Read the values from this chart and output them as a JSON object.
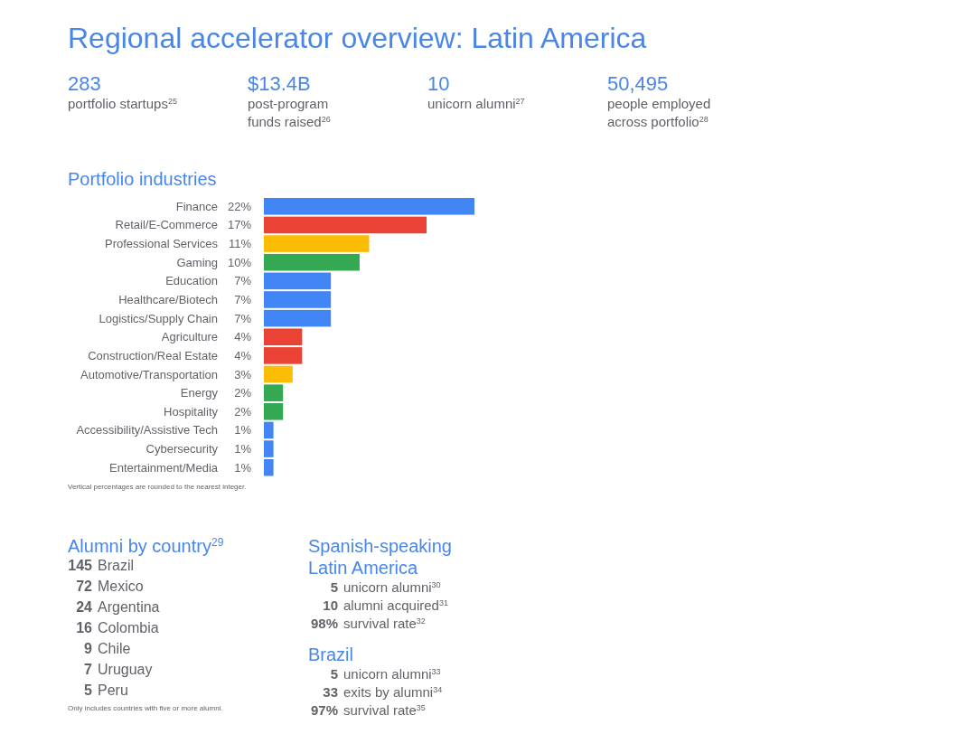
{
  "chart_data": [
    {
      "type": "other",
      "title": "Regional accelerator overview: Latin America",
      "annotations": [
        "283",
        "portfolio startups$^{25}$",
        "$13.4B",
        "post-program\nfunds raised$^{26}$",
        "10",
        "unicorn alumni$^{27}$",
        "50,495",
        "people employed\nacross portfolio$^{28}$"
      ]
    },
    {
      "type": "bar",
      "orientation": "horizontal",
      "title": "Portfolio industries",
      "categories": [
        "Finance",
        "Retail/E-Commerce",
        "Professional Services",
        "Gaming",
        "Education",
        "Healthcare/Biotech",
        "Logistics/Supply Chain",
        "Agriculture",
        "Construction/Real Estate",
        "Automotive/Transportation",
        "Energy",
        "Hospitality",
        "Accessibility/Assistive Tech",
        "Cybersecurity",
        "Entertainment/Media"
      ],
      "values": [
        22,
        17,
        11,
        10,
        7,
        7,
        7,
        4,
        4,
        3,
        2,
        2,
        1,
        1,
        1
      ],
      "value_labels": [
        "22%",
        "17%",
        "11%",
        "10%",
        "7%",
        "7%",
        "7%",
        "4%",
        "4%",
        "3%",
        "2%",
        "2%",
        "1%",
        "1%",
        "1%"
      ],
      "colors": [
        "#4285f4",
        "#ea4335",
        "#fbbc04",
        "#34a853",
        "#4285f4",
        "#4285f4",
        "#4285f4",
        "#ea4335",
        "#ea4335",
        "#fbbc04",
        "#34a853",
        "#34a853",
        "#4285f4",
        "#4285f4",
        "#4285f4"
      ],
      "annotations": [
        "Vertical percentages are rounded to the nearest integer."
      ]
    },
    {
      "type": "other",
      "title": "Alumni by country$^{29}$",
      "categories": [
        "Brazil",
        "Mexico",
        "Argentina",
        "Colombia",
        "Chile",
        "Uruguay",
        "Peru"
      ],
      "values": [
        145,
        72,
        24,
        16,
        9,
        7,
        5
      ],
      "data_labels": true,
      "annotations": [
        "Only includes countries with five or more alumni."
      ]
    },
    {
      "type": "other",
      "title": "Spanish-speaking\nLatin America",
      "categories": [
        "unicorn alumni$^{30}$",
        "alumni acquired$^{31}$",
        "survival rate$^{32}$"
      ],
      "value_labels": [
        "5",
        "10",
        "98%"
      ]
    },
    {
      "type": "other",
      "title": "Brazil",
      "categories": [
        "unicorn alumni$^{33}$",
        "exits by alumni$^{34}$",
        "survival rate$^{35}$"
      ],
      "value_labels": [
        "5",
        "33",
        "97%"
      ]
    }
  ]
}
